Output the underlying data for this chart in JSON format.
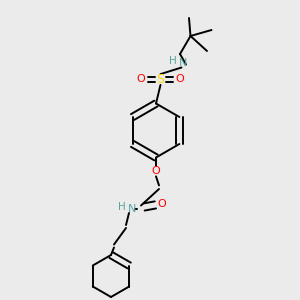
{
  "bg_color": "#ebebeb",
  "atom_colors": {
    "C": "#000000",
    "N": "#5ba3a0",
    "O": "#FF0000",
    "S": "#FFD700"
  },
  "bond_color": "#000000",
  "bond_width": 1.4,
  "figsize": [
    3.0,
    3.0
  ],
  "dpi": 100,
  "xlim": [
    0,
    1
  ],
  "ylim": [
    0,
    1
  ],
  "ring_r": 0.09,
  "cyc_r": 0.07
}
